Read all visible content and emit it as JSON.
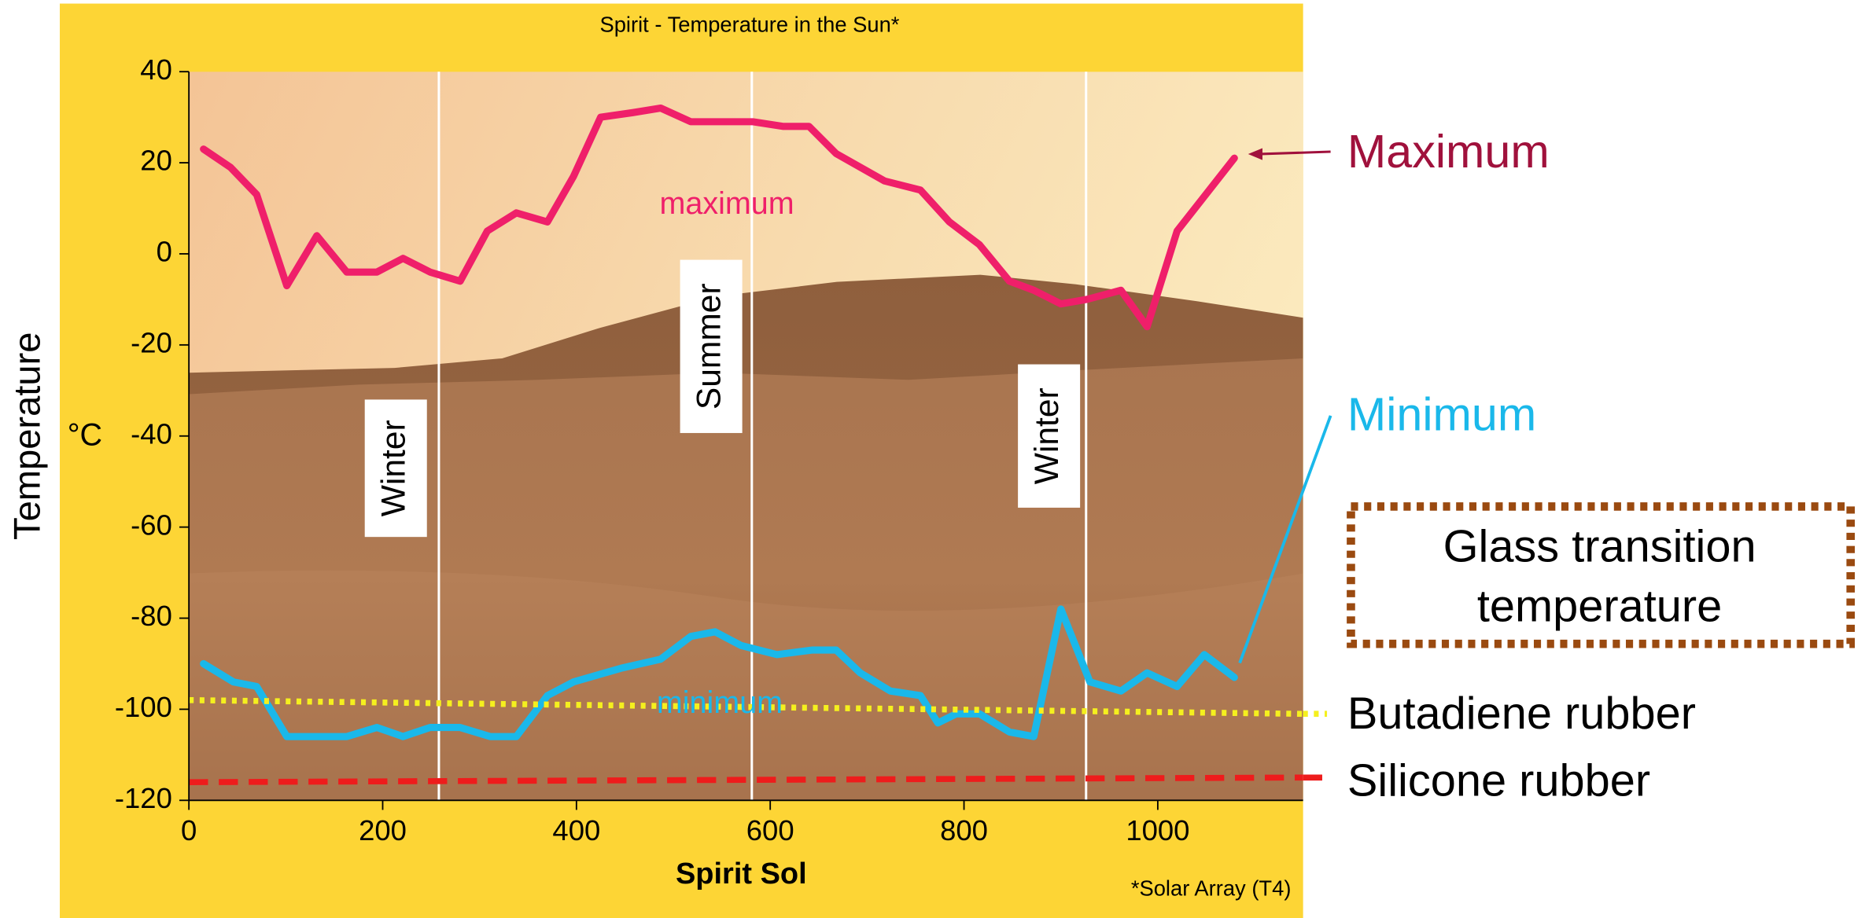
{
  "chart_data": {
    "type": "line",
    "title": "Spirit - Temperature in the Sun*",
    "xlabel": "Spirit Sol",
    "ylabel": "Temperature",
    "yunit": "°C",
    "footnote": "*Solar Array (T4)",
    "xlim": [
      0,
      1150
    ],
    "ylim": [
      -120,
      40
    ],
    "xticks": [
      0,
      200,
      400,
      600,
      800,
      1000
    ],
    "yticks": [
      -120,
      -100,
      -80,
      -60,
      -40,
      -20,
      0,
      20,
      40
    ],
    "seasons": [
      {
        "label": "Winter",
        "x": 258
      },
      {
        "label": "Summer",
        "x": 581
      },
      {
        "label": "Winter",
        "x": 926
      }
    ],
    "series": [
      {
        "name": "maximum",
        "color": "#ef1f6a",
        "style": "solid",
        "x": [
          15,
          43,
          70,
          101,
          132,
          163,
          194,
          221,
          249,
          280,
          308,
          338,
          370,
          397,
          425,
          458,
          487,
          518,
          551,
          582,
          613,
          640,
          668,
          718,
          755,
          785,
          816,
          847,
          872,
          900,
          927,
          962,
          989,
          1020,
          1079
        ],
        "values": [
          23,
          19,
          13,
          -7,
          4,
          -4,
          -4,
          -1,
          -4,
          -6,
          5,
          9,
          7,
          17,
          30,
          31,
          32,
          29,
          29,
          29,
          28,
          28,
          22,
          16,
          14,
          7,
          2,
          -6,
          -8,
          -11,
          -10,
          -8,
          -16,
          5,
          21
        ]
      },
      {
        "name": "minimum",
        "color": "#1ab8ea",
        "style": "solid",
        "x": [
          15,
          46,
          70,
          101,
          132,
          163,
          194,
          221,
          249,
          280,
          311,
          338,
          370,
          397,
          446,
          487,
          518,
          543,
          570,
          607,
          643,
          668,
          693,
          724,
          755,
          773,
          792,
          816,
          847,
          872,
          900,
          930,
          962,
          989,
          1020,
          1048,
          1079
        ],
        "values": [
          -90,
          -94,
          -95,
          -106,
          -106,
          -106,
          -104,
          -106,
          -104,
          -104,
          -106,
          -106,
          -97,
          -94,
          -91,
          -89,
          -84,
          -83,
          -86,
          -88,
          -87,
          -87,
          -92,
          -96,
          -97,
          -103,
          -101,
          -101,
          -105,
          -106,
          -78,
          -94,
          -96,
          -92,
          -95,
          -88,
          -93
        ]
      },
      {
        "name": "Butadiene rubber",
        "color": "#f5f01e",
        "style": "dotted",
        "x": [
          0,
          1150
        ],
        "values": [
          -98,
          -101
        ]
      },
      {
        "name": "Silicone rubber",
        "color": "#ee1c1c",
        "style": "dashed",
        "x": [
          0,
          1150
        ],
        "values": [
          -116,
          -115
        ]
      }
    ],
    "annotations": {
      "maximum": "Maximum",
      "minimum": "Minimum",
      "glass_transition": [
        "Glass transition",
        "temperature"
      ]
    }
  }
}
